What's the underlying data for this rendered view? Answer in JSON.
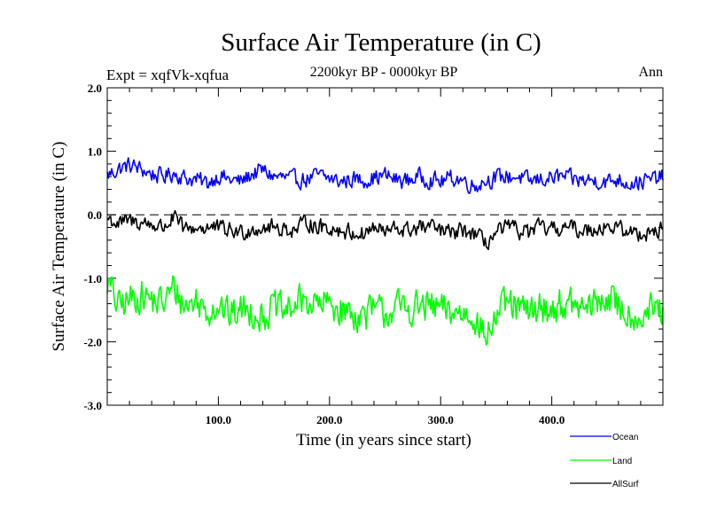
{
  "chart_data": {
    "type": "line",
    "title": "Surface Air Temperature (in C)",
    "experiment_label": "Expt = xqfVk-xqfua",
    "period_label": "2200kyr BP - 0000kyr BP",
    "season_label": "Ann",
    "xlabel": "Time (in years since start)",
    "ylabel": "Surface Air Temperature (in C)",
    "xlim": [
      0,
      500
    ],
    "ylim": [
      -3.0,
      2.0
    ],
    "x_ticks": [
      {
        "value": 100,
        "label": "100.0"
      },
      {
        "value": 200,
        "label": "200.0"
      },
      {
        "value": 300,
        "label": "300.0"
      },
      {
        "value": 400,
        "label": "400.0"
      }
    ],
    "y_ticks": [
      {
        "value": 2,
        "label": "2.0"
      },
      {
        "value": 1,
        "label": "1.0"
      },
      {
        "value": 0,
        "label": "0.0"
      },
      {
        "value": -1,
        "label": "-1.0"
      },
      {
        "value": -2,
        "label": "-2.0"
      },
      {
        "value": -3,
        "label": "-3.0"
      }
    ],
    "zero_line": {
      "value": 0,
      "style": "dashed"
    },
    "series": [
      {
        "name": "Ocean",
        "color": "#0000ff",
        "x_step": 10,
        "values": [
          0.62,
          0.72,
          0.78,
          0.72,
          0.64,
          0.6,
          0.66,
          0.58,
          0.55,
          0.5,
          0.62,
          0.55,
          0.52,
          0.64,
          0.7,
          0.6,
          0.58,
          0.55,
          0.56,
          0.62,
          0.57,
          0.52,
          0.56,
          0.55,
          0.58,
          0.62,
          0.55,
          0.54,
          0.6,
          0.56,
          0.52,
          0.58,
          0.55,
          0.45,
          0.54,
          0.58,
          0.6,
          0.6,
          0.52,
          0.56,
          0.58,
          0.6,
          0.55,
          0.54,
          0.54,
          0.52,
          0.56,
          0.5,
          0.52,
          0.55,
          0.6
        ]
      },
      {
        "name": "Land",
        "color": "#00ff00",
        "x_step": 10,
        "values": [
          -1.05,
          -1.45,
          -1.35,
          -1.25,
          -1.35,
          -1.4,
          -1.15,
          -1.45,
          -1.35,
          -1.5,
          -1.4,
          -1.6,
          -1.5,
          -1.5,
          -1.6,
          -1.45,
          -1.55,
          -1.4,
          -1.35,
          -1.45,
          -1.4,
          -1.5,
          -1.55,
          -1.6,
          -1.5,
          -1.55,
          -1.45,
          -1.5,
          -1.45,
          -1.45,
          -1.5,
          -1.55,
          -1.55,
          -1.55,
          -1.95,
          -1.6,
          -1.4,
          -1.5,
          -1.55,
          -1.45,
          -1.5,
          -1.4,
          -1.45,
          -1.5,
          -1.4,
          -1.3,
          -1.45,
          -1.55,
          -1.6,
          -1.5,
          -1.55
        ]
      },
      {
        "name": "AllSurf",
        "color": "#000000",
        "x_step": 10,
        "values": [
          -0.05,
          -0.15,
          -0.1,
          -0.12,
          -0.15,
          -0.2,
          -0.05,
          -0.25,
          -0.2,
          -0.2,
          -0.22,
          -0.25,
          -0.28,
          -0.22,
          -0.2,
          -0.2,
          -0.22,
          -0.25,
          -0.1,
          -0.2,
          -0.2,
          -0.25,
          -0.28,
          -0.3,
          -0.2,
          -0.28,
          -0.22,
          -0.25,
          -0.2,
          -0.2,
          -0.25,
          -0.3,
          -0.25,
          -0.3,
          -0.45,
          -0.3,
          -0.2,
          -0.25,
          -0.28,
          -0.2,
          -0.25,
          -0.2,
          -0.22,
          -0.25,
          -0.2,
          -0.18,
          -0.22,
          -0.28,
          -0.3,
          -0.25,
          -0.25
        ]
      }
    ],
    "legend": {
      "placement": "bottom-right",
      "entries": [
        "Ocean",
        "Land",
        "AllSurf"
      ]
    }
  }
}
